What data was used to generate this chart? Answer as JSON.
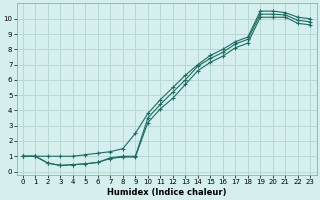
{
  "bg_color": "#d4efed",
  "grid_color": "#b8d8d5",
  "line_color": "#1e6b63",
  "xlabel": "Humidex (Indice chaleur)",
  "xlim": [
    -0.5,
    23.5
  ],
  "ylim": [
    -0.2,
    11.0
  ],
  "xticks": [
    0,
    1,
    2,
    3,
    4,
    5,
    6,
    7,
    8,
    9,
    10,
    11,
    12,
    13,
    14,
    15,
    16,
    17,
    18,
    19,
    20,
    21,
    22,
    23
  ],
  "yticks": [
    0,
    1,
    2,
    3,
    4,
    5,
    6,
    7,
    8,
    9,
    10
  ],
  "curve_top_x": [
    0,
    1,
    2,
    3,
    4,
    5,
    6,
    7,
    8,
    9,
    10,
    11,
    12,
    13,
    14,
    15,
    16,
    17,
    18,
    19,
    20,
    21,
    22,
    23
  ],
  "curve_top_y": [
    1.0,
    1.0,
    1.0,
    1.0,
    1.0,
    1.1,
    1.2,
    1.3,
    1.5,
    2.5,
    3.8,
    4.7,
    5.5,
    6.3,
    7.0,
    7.6,
    8.0,
    8.5,
    8.8,
    10.5,
    10.5,
    10.4,
    10.1,
    10.0
  ],
  "curve_mid_x": [
    0,
    1,
    2,
    3,
    4,
    5,
    6,
    7,
    8,
    9,
    10,
    11,
    12,
    13,
    14,
    15,
    16,
    17,
    18,
    19,
    20,
    21,
    22,
    23
  ],
  "curve_mid_y": [
    1.0,
    1.0,
    0.55,
    0.4,
    0.45,
    0.5,
    0.6,
    0.9,
    1.0,
    1.0,
    3.5,
    4.4,
    5.2,
    6.0,
    6.9,
    7.4,
    7.8,
    8.35,
    8.65,
    10.3,
    10.3,
    10.25,
    9.9,
    9.8
  ],
  "curve_bot_x": [
    0,
    1,
    2,
    3,
    4,
    5,
    6,
    7,
    8,
    9,
    10,
    11,
    12,
    13,
    14,
    15,
    16,
    17,
    18,
    19,
    20,
    21,
    22,
    23
  ],
  "curve_bot_y": [
    1.0,
    1.0,
    0.55,
    0.4,
    0.45,
    0.5,
    0.6,
    0.85,
    0.95,
    0.95,
    3.2,
    4.1,
    4.8,
    5.7,
    6.6,
    7.15,
    7.55,
    8.1,
    8.4,
    10.1,
    10.1,
    10.1,
    9.7,
    9.6
  ]
}
